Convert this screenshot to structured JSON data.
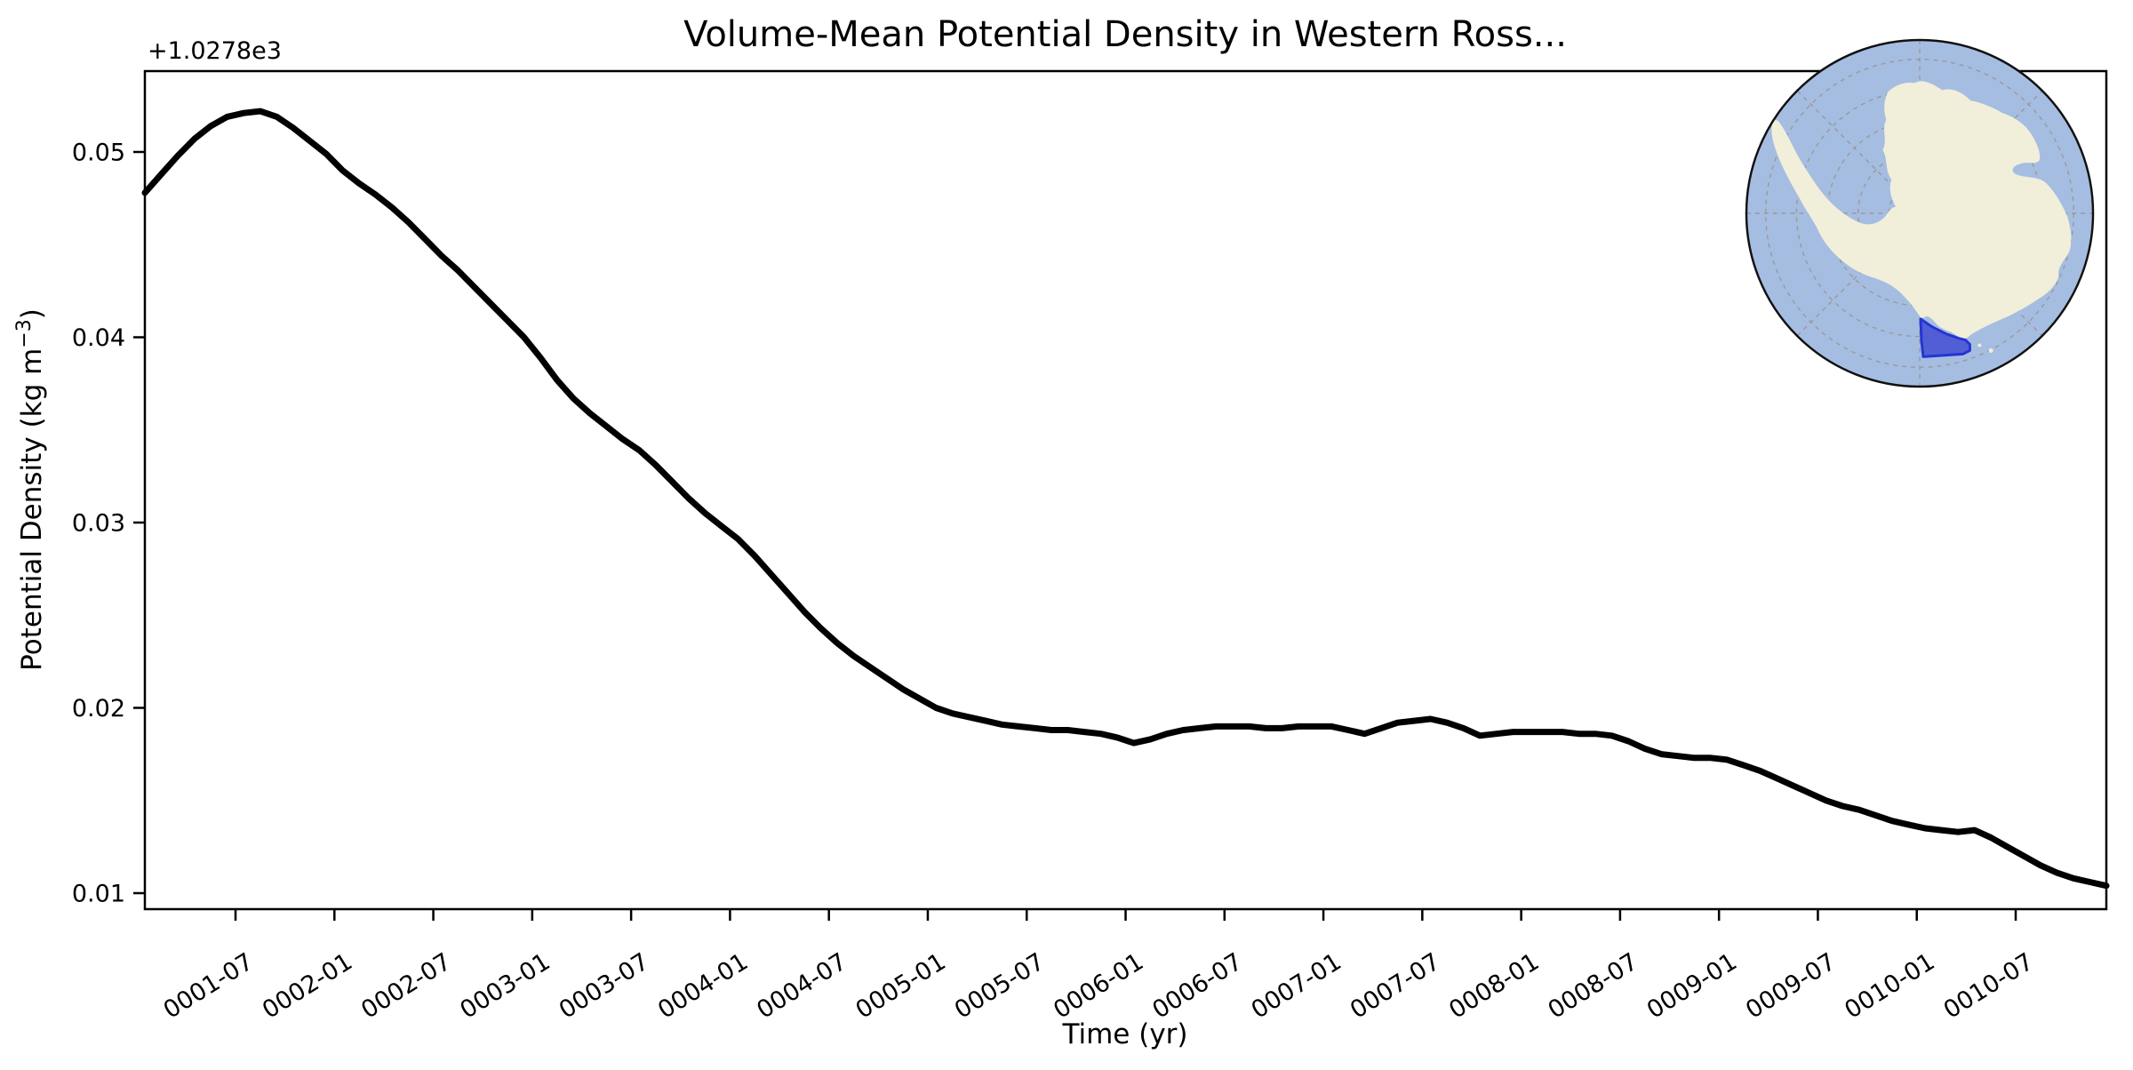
{
  "figure": {
    "title": "Volume-Mean Potential Density in Western Ross...",
    "offset_text": "+1.0278e3",
    "xlabel": "Time (yr)",
    "ylabel": "Potential Density (kg m⁻³)",
    "ylabel_parts": {
      "base": "Potential Density (kg m",
      "sup": "−3",
      "close": ")"
    }
  },
  "chart_data": {
    "type": "line",
    "title": "Volume-Mean Potential Density in Western Ross...",
    "xlabel": "Time (yr)",
    "ylabel": "Potential Density (kg m⁻³)",
    "y_axis_offset": 1027.8,
    "y_axis_offset_label": "+1.0278e3",
    "y_tick_labels": [
      "0.01",
      "0.02",
      "0.03",
      "0.04",
      "0.05"
    ],
    "y_tick_values": [
      0.01,
      0.02,
      0.03,
      0.04,
      0.05
    ],
    "ylim": [
      0.0091,
      0.0544
    ],
    "x_tick_labels": [
      "0001-07",
      "0002-01",
      "0002-07",
      "0003-01",
      "0003-07",
      "0004-01",
      "0004-07",
      "0005-01",
      "0005-07",
      "0006-01",
      "0006-07",
      "0007-01",
      "0007-07",
      "0008-01",
      "0008-07",
      "0009-01",
      "0009-07",
      "0010-01",
      "0010-07"
    ],
    "x_start": "0001-01",
    "x_step": "1 month",
    "x_first_tick_index": 5.5,
    "x_tick_interval": 6,
    "grid": false,
    "legend": "none",
    "series": [
      {
        "name": "Volume-mean potential density (value = 1027.8 + v)",
        "color": "#000000",
        "values": [
          0.0478,
          0.0488,
          0.0498,
          0.0507,
          0.0514,
          0.0519,
          0.0521,
          0.0522,
          0.0519,
          0.0513,
          0.0506,
          0.0499,
          0.049,
          0.0483,
          0.0477,
          0.047,
          0.0462,
          0.0453,
          0.0444,
          0.0436,
          0.0427,
          0.0418,
          0.0409,
          0.04,
          0.0389,
          0.0377,
          0.0367,
          0.0359,
          0.0352,
          0.0345,
          0.0339,
          0.0331,
          0.0322,
          0.0313,
          0.0305,
          0.0298,
          0.0291,
          0.0282,
          0.0272,
          0.0262,
          0.0252,
          0.0243,
          0.0235,
          0.0228,
          0.0222,
          0.0216,
          0.021,
          0.0205,
          0.02,
          0.0197,
          0.0195,
          0.0193,
          0.0191,
          0.019,
          0.0189,
          0.0188,
          0.0188,
          0.0187,
          0.0186,
          0.0184,
          0.0181,
          0.0183,
          0.0186,
          0.0188,
          0.0189,
          0.019,
          0.019,
          0.019,
          0.0189,
          0.0189,
          0.019,
          0.019,
          0.019,
          0.0188,
          0.0186,
          0.0189,
          0.0192,
          0.0193,
          0.0194,
          0.0192,
          0.0189,
          0.0185,
          0.0186,
          0.0187,
          0.0187,
          0.0187,
          0.0187,
          0.0186,
          0.0186,
          0.0185,
          0.0182,
          0.0178,
          0.0175,
          0.0174,
          0.0173,
          0.0173,
          0.0172,
          0.0169,
          0.0166,
          0.0162,
          0.0158,
          0.0154,
          0.015,
          0.0147,
          0.0145,
          0.0142,
          0.0139,
          0.0137,
          0.0135,
          0.0134,
          0.0133,
          0.0134,
          0.013,
          0.0125,
          0.012,
          0.0115,
          0.0111,
          0.0108,
          0.0106,
          0.0104
        ]
      }
    ]
  },
  "inset_map": {
    "name": "South polar view of Antarctica",
    "highlight_region": "Western Ross Sea",
    "colors": {
      "ocean": "#a6bde2",
      "land": "#f1efda",
      "region_fill": "#4a56d5",
      "region_edge": "#2535d2",
      "graticule": "#999999",
      "boundary": "#111111"
    }
  }
}
